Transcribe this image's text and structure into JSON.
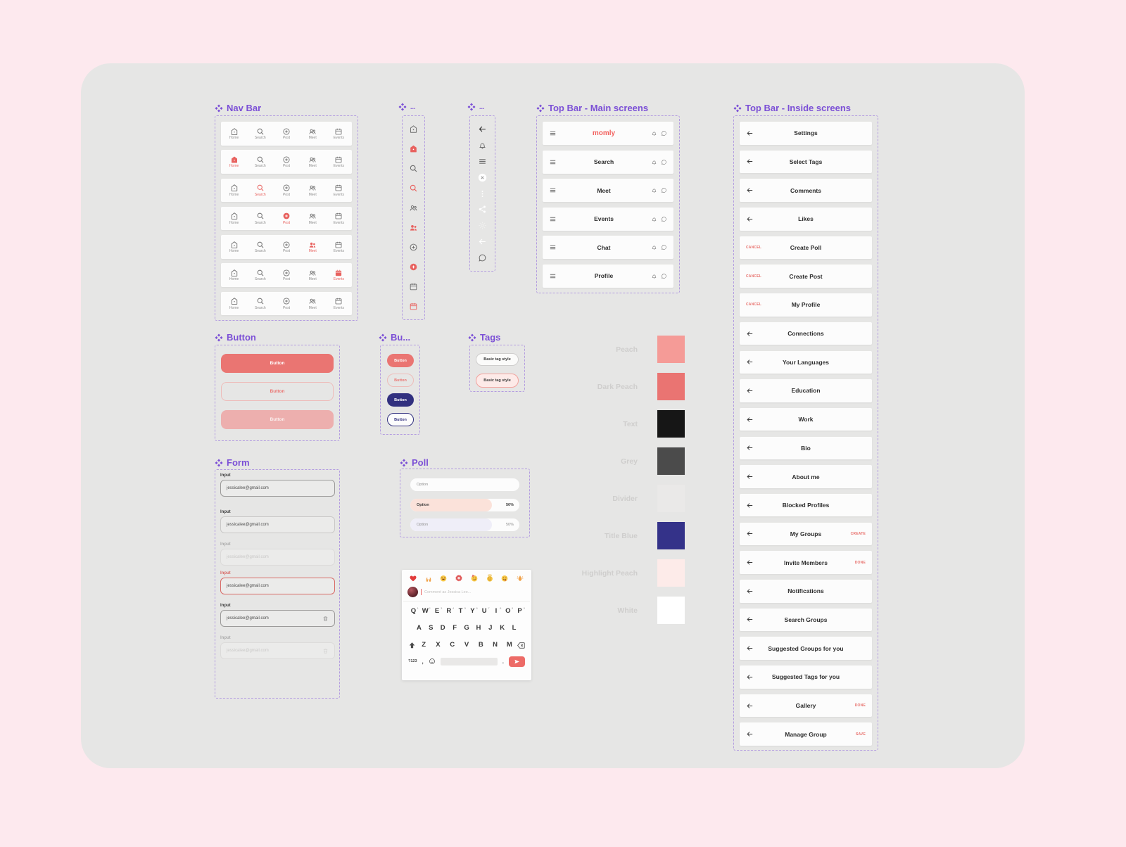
{
  "page": {
    "bg": "#fde9ee",
    "canvas_bg": "#e6e6e5",
    "accent_purple": "#7b4fd6",
    "accent_red": "#e8625f"
  },
  "sections": {
    "nav_bar": {
      "title": "Nav Bar"
    },
    "icon_col_1": {
      "title": "..."
    },
    "icon_col_2": {
      "title": "..."
    },
    "top_bar_main": {
      "title": "Top Bar - Main screens"
    },
    "top_bar_inside": {
      "title": "Top Bar - Inside screens"
    },
    "button": {
      "title": "Button"
    },
    "button_small": {
      "title": "Bu..."
    },
    "tags": {
      "title": "Tags"
    },
    "form": {
      "title": "Form"
    },
    "poll": {
      "title": "Poll"
    }
  },
  "nav_bar": {
    "items": [
      "Home",
      "Search",
      "Post",
      "Meet",
      "Events"
    ],
    "icons": [
      "home",
      "search",
      "post",
      "meet",
      "events"
    ],
    "rows": [
      {
        "active": null
      },
      {
        "active": 0
      },
      {
        "active": 1
      },
      {
        "active": 2
      },
      {
        "active": 3
      },
      {
        "active": 4
      },
      {
        "active": null
      }
    ]
  },
  "icon_col_1": {
    "icons": [
      {
        "icon": "home",
        "variant": "gray"
      },
      {
        "icon": "home-filled",
        "variant": "red"
      },
      {
        "icon": "search",
        "variant": "gray"
      },
      {
        "icon": "search",
        "variant": "red"
      },
      {
        "icon": "meet",
        "variant": "gray"
      },
      {
        "icon": "meet-filled",
        "variant": "red"
      },
      {
        "icon": "post",
        "variant": "gray"
      },
      {
        "icon": "post-filled",
        "variant": "red"
      },
      {
        "icon": "events",
        "variant": "gray"
      },
      {
        "icon": "events",
        "variant": "red"
      }
    ]
  },
  "icon_col_2": {
    "icons": [
      {
        "icon": "back",
        "variant": "dark"
      },
      {
        "icon": "bell",
        "variant": "gray"
      },
      {
        "icon": "menu",
        "variant": "gray"
      },
      {
        "icon": "close-circle",
        "variant": "badge"
      },
      {
        "icon": "kebab",
        "variant": "white"
      },
      {
        "icon": "share",
        "variant": "white"
      },
      {
        "icon": "gear",
        "variant": "faint"
      },
      {
        "icon": "back",
        "variant": "white"
      },
      {
        "icon": "chat",
        "variant": "gray"
      }
    ]
  },
  "top_bar_main": {
    "rows": [
      {
        "title": "momly",
        "brand": true
      },
      {
        "title": "Search"
      },
      {
        "title": "Meet"
      },
      {
        "title": "Events"
      },
      {
        "title": "Chat"
      },
      {
        "title": "Profile"
      }
    ]
  },
  "top_bar_inside": {
    "rows": [
      {
        "left": "back",
        "title": "Settings"
      },
      {
        "left": "back",
        "title": "Select Tags"
      },
      {
        "left": "back",
        "title": "Comments"
      },
      {
        "left": "back",
        "title": "Likes"
      },
      {
        "left": "CANCEL",
        "title": "Create Poll"
      },
      {
        "left": "CANCEL",
        "title": "Create Post"
      },
      {
        "left": "CANCEL",
        "title": "My Profile"
      },
      {
        "left": "back",
        "title": "Connections"
      },
      {
        "left": "back",
        "title": "Your Languages"
      },
      {
        "left": "back",
        "title": "Education"
      },
      {
        "left": "back",
        "title": "Work"
      },
      {
        "left": "back",
        "title": "Bio"
      },
      {
        "left": "back",
        "title": "About me"
      },
      {
        "left": "back",
        "title": "Blocked Profiles"
      },
      {
        "left": "back",
        "title": "My Groups",
        "right": "CREATE"
      },
      {
        "left": "back",
        "title": "Invite Members",
        "right": "DONE"
      },
      {
        "left": "back",
        "title": "Notifications"
      },
      {
        "left": "back",
        "title": "Search Groups"
      },
      {
        "left": "back",
        "title": "Suggested Groups for you"
      },
      {
        "left": "back",
        "title": "Suggested Tags for you"
      },
      {
        "left": "back",
        "title": "Gallery",
        "right": "DONE"
      },
      {
        "left": "back",
        "title": "Manage Group",
        "right": "SAVE"
      }
    ]
  },
  "buttons": {
    "large": [
      {
        "label": "Button",
        "style": "primary"
      },
      {
        "label": "Button",
        "style": "outline"
      },
      {
        "label": "Button",
        "style": "disabled"
      }
    ],
    "small": [
      {
        "label": "Button",
        "style": "primary"
      },
      {
        "label": "Button",
        "style": "outline"
      },
      {
        "label": "Button",
        "style": "navy"
      },
      {
        "label": "Button",
        "style": "navy-outline"
      }
    ]
  },
  "tags": {
    "items": [
      {
        "label": "Basic tag style",
        "style": "default"
      },
      {
        "label": "Basic tag style",
        "style": "highlight"
      }
    ]
  },
  "palette": [
    {
      "name": "Peach",
      "hex": "#F59B97"
    },
    {
      "name": "Dark Peach",
      "hex": "#EA7472"
    },
    {
      "name": "Text",
      "hex": "#161616"
    },
    {
      "name": "Grey",
      "hex": "#4B4B4B"
    },
    {
      "name": "Divider",
      "hex": "#EAE9E8"
    },
    {
      "name": "Title Blue",
      "hex": "#343289"
    },
    {
      "name": "Highlight Peach",
      "hex": "#FDEBE9"
    },
    {
      "name": "White",
      "hex": "#FFFFFF"
    }
  ],
  "form": {
    "fields": [
      {
        "label": "Input",
        "value": "jessicalee@gmail.com",
        "state": "focused"
      },
      {
        "label": "Input",
        "value": "jessicalee@gmail.com",
        "state": "default"
      },
      {
        "label": "Input",
        "placeholder": "jessicalee@gmail.com",
        "state": "disabled"
      },
      {
        "label": "Input",
        "value": "jessicalee@gmail.com",
        "state": "error"
      },
      {
        "label": "Input",
        "value": "jessicalee@gmail.com",
        "state": "delete",
        "icon": "trash"
      },
      {
        "label": "Input",
        "placeholder": "jessicalee@gmail.com",
        "state": "disabled-delete",
        "icon": "trash"
      }
    ]
  },
  "poll": {
    "options": [
      {
        "label": "Option",
        "style": "empty"
      },
      {
        "label": "Option",
        "style": "peach",
        "percent": "50%",
        "fill": 75
      },
      {
        "label": "Option",
        "style": "lavender",
        "percent": "50%",
        "fill": 75
      }
    ]
  },
  "keyboard": {
    "emojis": [
      "heart",
      "raised-hands",
      "laughing",
      "rosette",
      "party",
      "angel",
      "wink",
      "clap"
    ],
    "comment_placeholder": "Comment as Jessica Lee...",
    "row1": [
      {
        "k": "Q",
        "hint": "1"
      },
      {
        "k": "W",
        "hint": "2"
      },
      {
        "k": "E",
        "hint": "3"
      },
      {
        "k": "R",
        "hint": "4"
      },
      {
        "k": "T",
        "hint": "5"
      },
      {
        "k": "Y",
        "hint": "6"
      },
      {
        "k": "U",
        "hint": "7"
      },
      {
        "k": "I",
        "hint": "8"
      },
      {
        "k": "O",
        "hint": "9"
      },
      {
        "k": "P",
        "hint": "0"
      }
    ],
    "row2": [
      "A",
      "S",
      "D",
      "F",
      "G",
      "H",
      "J",
      "K",
      "L"
    ],
    "row3": [
      "Z",
      "X",
      "C",
      "V",
      "B",
      "N",
      "M"
    ],
    "bottom": {
      "sym": "?123",
      "comma": ",",
      "period": "."
    }
  }
}
